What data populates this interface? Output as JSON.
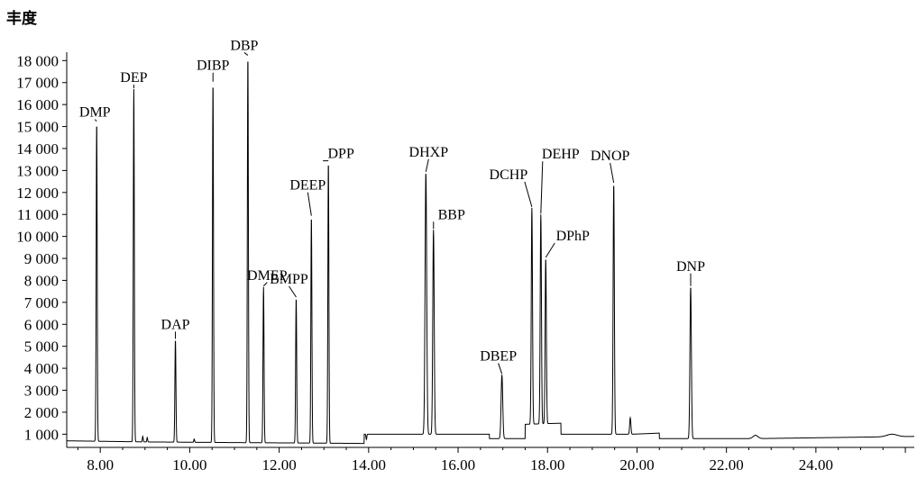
{
  "chart_data": {
    "type": "line",
    "title": "",
    "xlabel": "",
    "ylabel": "丰度",
    "xlim": [
      7.25,
      26.2
    ],
    "ylim": [
      400,
      18300
    ],
    "x_ticks": [
      {
        "value": 8,
        "label": "8.00"
      },
      {
        "value": 10,
        "label": "10.00"
      },
      {
        "value": 12,
        "label": "12.00"
      },
      {
        "value": 14,
        "label": "14.00"
      },
      {
        "value": 16,
        "label": "16.00"
      },
      {
        "value": 18,
        "label": "18.00"
      },
      {
        "value": 20,
        "label": "20.00"
      },
      {
        "value": 22,
        "label": "22.00"
      },
      {
        "value": 24,
        "label": "24.00"
      }
    ],
    "y_ticks": [
      {
        "value": 1000,
        "label": "1 000"
      },
      {
        "value": 2000,
        "label": "2 000"
      },
      {
        "value": 3000,
        "label": "3 000"
      },
      {
        "value": 4000,
        "label": "4 000"
      },
      {
        "value": 5000,
        "label": "5 000"
      },
      {
        "value": 6000,
        "label": "6 000"
      },
      {
        "value": 7000,
        "label": "7 000"
      },
      {
        "value": 8000,
        "label": "8 000"
      },
      {
        "value": 9000,
        "label": "9 000"
      },
      {
        "value": 10000,
        "label": "10 000"
      },
      {
        "value": 11000,
        "label": "11 000"
      },
      {
        "value": 12000,
        "label": "12 000"
      },
      {
        "value": 13000,
        "label": "13 000"
      },
      {
        "value": 14000,
        "label": "14 000"
      },
      {
        "value": 15000,
        "label": "15 000"
      },
      {
        "value": 16000,
        "label": "16 000"
      },
      {
        "value": 17000,
        "label": "17 000"
      },
      {
        "value": 18000,
        "label": "18 000"
      }
    ],
    "baseline": [
      [
        7.25,
        700
      ],
      [
        9.0,
        650
      ],
      [
        11.0,
        620
      ],
      [
        12.5,
        600
      ],
      [
        13.9,
        580
      ],
      [
        13.9,
        1000
      ],
      [
        16.7,
        1000
      ],
      [
        16.7,
        800
      ],
      [
        17.5,
        800
      ],
      [
        17.5,
        1450
      ],
      [
        18.3,
        1500
      ],
      [
        18.3,
        1000
      ],
      [
        19.9,
        1000
      ],
      [
        20.5,
        1050
      ],
      [
        20.5,
        800
      ],
      [
        22.7,
        800
      ],
      [
        26.2,
        900
      ]
    ],
    "peaks": [
      {
        "name": "DMP",
        "rt": 7.92,
        "height": 15200,
        "width": 0.025
      },
      {
        "name": "DEP",
        "rt": 8.75,
        "height": 16700,
        "width": 0.025
      },
      {
        "name": "DAP",
        "rt": 9.68,
        "height": 5300,
        "width": 0.025
      },
      {
        "name": "DIBP",
        "rt": 10.52,
        "height": 17000,
        "width": 0.025
      },
      {
        "name": "DBP",
        "rt": 11.3,
        "height": 18200,
        "width": 0.025
      },
      {
        "name": "DMEP",
        "rt": 11.65,
        "height": 7700,
        "width": 0.025
      },
      {
        "name": "BMPP",
        "rt": 12.38,
        "height": 7200,
        "width": 0.025
      },
      {
        "name": "DEEP",
        "rt": 12.72,
        "height": 10900,
        "width": 0.025
      },
      {
        "name": "DPP",
        "rt": 13.1,
        "height": 13400,
        "width": 0.025
      },
      {
        "name": "DHXP",
        "rt": 15.28,
        "height": 12900,
        "width": 0.04
      },
      {
        "name": "BBP",
        "rt": 15.45,
        "height": 10300,
        "width": 0.035
      },
      {
        "name": "DBEP",
        "rt": 16.98,
        "height": 3700,
        "width": 0.04
      },
      {
        "name": "DCHP",
        "rt": 17.65,
        "height": 11300,
        "width": 0.03
      },
      {
        "name": "DEHP",
        "rt": 17.85,
        "height": 11000,
        "width": 0.03
      },
      {
        "name": "DPhP",
        "rt": 17.96,
        "height": 9000,
        "width": 0.03
      },
      {
        "name": "DNOP",
        "rt": 19.48,
        "height": 12400,
        "width": 0.03
      },
      {
        "name": "DNP",
        "rt": 21.2,
        "height": 7700,
        "width": 0.035
      }
    ],
    "minor_peaks": [
      {
        "rt": 8.95,
        "height": 900,
        "width": 0.02
      },
      {
        "rt": 9.05,
        "height": 850,
        "width": 0.02
      },
      {
        "rt": 10.1,
        "height": 780,
        "width": 0.02
      },
      {
        "rt": 13.95,
        "height": 760,
        "width": 0.02
      },
      {
        "rt": 19.85,
        "height": 1750,
        "width": 0.03
      },
      {
        "rt": 22.65,
        "height": 950,
        "width": 0.12
      },
      {
        "rt": 25.7,
        "height": 1000,
        "width": 0.25
      }
    ],
    "grid": false,
    "legend": "none"
  }
}
